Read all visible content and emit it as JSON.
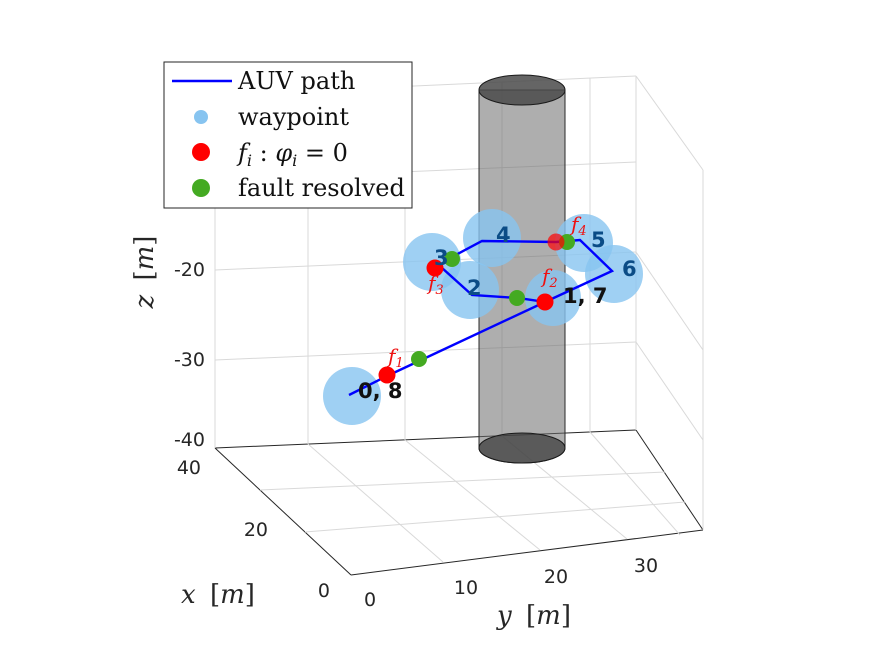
{
  "chart_data": {
    "type": "scatter3d",
    "axes": {
      "x": {
        "label_var": "x",
        "label_unit": "m",
        "ticks": [
          "0",
          "20",
          "40"
        ],
        "range": [
          0,
          40
        ]
      },
      "y": {
        "label_var": "y",
        "label_unit": "m",
        "ticks": [
          "0",
          "10",
          "20",
          "30"
        ],
        "range": [
          0,
          35
        ]
      },
      "z": {
        "label_var": "z",
        "label_unit": "m",
        "ticks": [
          "-20",
          "-30",
          "-40"
        ],
        "range": [
          -40,
          -10
        ]
      }
    },
    "grid": true,
    "legend": {
      "placement": "top-left",
      "entries": [
        {
          "label": "AUV path",
          "marker": "line",
          "color": "#0000ff"
        },
        {
          "label": "waypoint",
          "marker": "circle",
          "color": "#87c4f0"
        },
        {
          "label": "f_i : φ_i = 0",
          "label_text": {
            "f": "f",
            "i": "i",
            "sep": " : ",
            "phi": "φ",
            "eq": " = 0"
          },
          "marker": "circle",
          "color": "#ff0000"
        },
        {
          "label": "fault resolved",
          "marker": "circle",
          "color": "#44aa22"
        }
      ]
    },
    "obstacle": {
      "shape": "cylinder",
      "color": "#6b6b6b"
    },
    "waypoints": [
      {
        "label": "0, 8",
        "x": 0,
        "y": 0,
        "z": -35
      },
      {
        "label": "1, 7",
        "x": 20,
        "y": 20,
        "z": -25
      },
      {
        "label": "2",
        "x": 25,
        "y": 11,
        "z": -25
      },
      {
        "label": "3",
        "x": 30,
        "y": 7,
        "z": -20
      },
      {
        "label": "4",
        "x": 35,
        "y": 15,
        "z": -20
      },
      {
        "label": "5",
        "x": 30,
        "y": 25,
        "z": -20
      },
      {
        "label": "6",
        "x": 25,
        "y": 30,
        "z": -20
      }
    ],
    "fault_markers": [
      {
        "label": "f_1",
        "f": "f",
        "sub": "1"
      },
      {
        "label": "f_2",
        "f": "f",
        "sub": "2"
      },
      {
        "label": "f_3",
        "f": "f",
        "sub": "3"
      },
      {
        "label": "f_4",
        "f": "f",
        "sub": "4"
      }
    ],
    "colors": {
      "path": "#0000ff",
      "waypoint": "#87c4f0",
      "fault": "#ff0000",
      "resolved": "#44aa22"
    }
  }
}
